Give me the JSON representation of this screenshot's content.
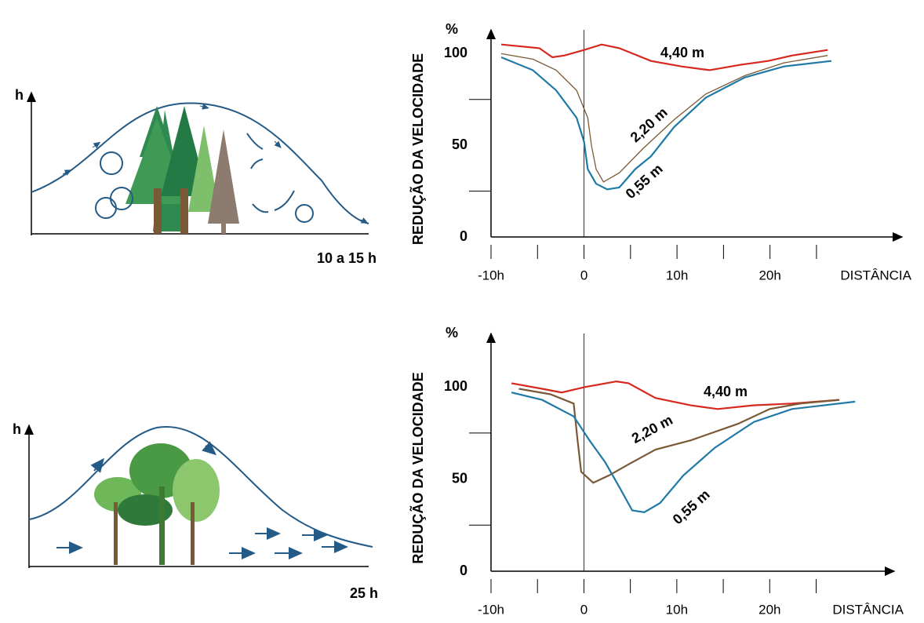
{
  "chart_data": [
    {
      "type": "line",
      "y_unit": "%",
      "y_label": "REDUÇÃO  DA  VELOCIDADE",
      "x_label": "DISTÂNCIA",
      "xlim": [
        -10,
        34.2
      ],
      "ylim": [
        0,
        113
      ],
      "xticks": [
        {
          "value": -10,
          "label": "-10h"
        },
        0,
        {
          "value": 10,
          "label": "10h"
        },
        {
          "value": 20,
          "label": "20h"
        }
      ],
      "x_minor_ticks": [
        -5,
        5,
        15,
        25
      ],
      "yticks": [
        0,
        50,
        100
      ],
      "y_minor_ticks": [
        25,
        75
      ],
      "vline": 0,
      "series": [
        {
          "name": "4,40 m",
          "color": "#d6281c",
          "x": [
            -8.9,
            -4.8,
            -3.4,
            -2.1,
            0,
            1.9,
            3.8,
            7.2,
            10.5,
            13.5,
            16.9,
            19.8,
            22.4,
            26.2
          ],
          "values": [
            105,
            103,
            98,
            99,
            102,
            105,
            103,
            96,
            93,
            91,
            94,
            96,
            99,
            102
          ]
        },
        {
          "name": "2,20 m",
          "color": "#7a5a36",
          "x": [
            -8.9,
            -5.5,
            -3,
            -0.8,
            0.4,
            0.8,
            1.3,
            2.1,
            3.8,
            6.3,
            9.7,
            13.1,
            17.3,
            21.5,
            26.2
          ],
          "values": [
            100,
            97,
            91,
            80,
            65,
            50,
            37,
            30,
            35,
            48,
            64,
            78,
            88,
            95,
            99
          ]
        },
        {
          "name": "0,55 m",
          "color": "#1f7aa6",
          "x": [
            -8.9,
            -5.5,
            -3,
            -0.8,
            0,
            0.4,
            1.3,
            2.5,
            3.8,
            5.5,
            7.2,
            9.7,
            13.1,
            17.3,
            21.5,
            26.6
          ],
          "values": [
            98,
            91,
            80,
            65,
            52,
            37,
            29,
            26,
            27,
            37,
            44,
            60,
            76,
            87,
            93,
            96
          ]
        }
      ]
    },
    {
      "type": "line",
      "y_unit": "%",
      "y_label": "REDUÇÃO  DA  VELOCIDADE",
      "x_label": "DISTÂNCIA",
      "xlim": [
        -10,
        33.4
      ],
      "ylim": [
        0,
        129
      ],
      "xticks": [
        {
          "value": -10,
          "label": "-10h"
        },
        0,
        {
          "value": 10,
          "label": "10h"
        },
        {
          "value": 20,
          "label": "20h"
        }
      ],
      "x_minor_ticks": [
        -5,
        5,
        15,
        25
      ],
      "yticks": [
        0,
        50,
        100
      ],
      "y_minor_ticks": [
        25,
        75
      ],
      "vline": 0,
      "series": [
        {
          "name": "4,40 m",
          "color": "#d6281c",
          "x": [
            -7.8,
            -4.5,
            -2.4,
            0.2,
            3.5,
            4.8,
            7.7,
            11.5,
            14.4,
            18.2,
            22.4,
            27.5
          ],
          "values": [
            102,
            99,
            97,
            100,
            103,
            102,
            94,
            90,
            88,
            90,
            91,
            93
          ]
        },
        {
          "name": "2,20 m",
          "color": "#7a5a36",
          "x": [
            -7,
            -3.6,
            -1.1,
            -0.7,
            -0.3,
            1,
            2.7,
            4.8,
            7.7,
            11.5,
            16.6,
            20,
            23.3,
            27.5
          ],
          "values": [
            99,
            96,
            91,
            72,
            54,
            48,
            52,
            58,
            66,
            71,
            80,
            88,
            91,
            93
          ]
        },
        {
          "name": "0,55 m",
          "color": "#1f7aa6",
          "x": [
            -7.8,
            -4.5,
            -1.1,
            0.6,
            2.3,
            4,
            5.2,
            6.5,
            8.2,
            10.7,
            14.1,
            18.3,
            22.4,
            29.2
          ],
          "values": [
            97,
            93,
            84,
            71,
            59,
            44,
            33,
            32,
            37,
            52,
            67,
            81,
            88,
            92
          ]
        }
      ]
    }
  ],
  "diagrams": [
    {
      "axis_label": "h",
      "width_label": "10 a 15 h"
    },
    {
      "axis_label": "h",
      "width_label": "25 h"
    }
  ]
}
